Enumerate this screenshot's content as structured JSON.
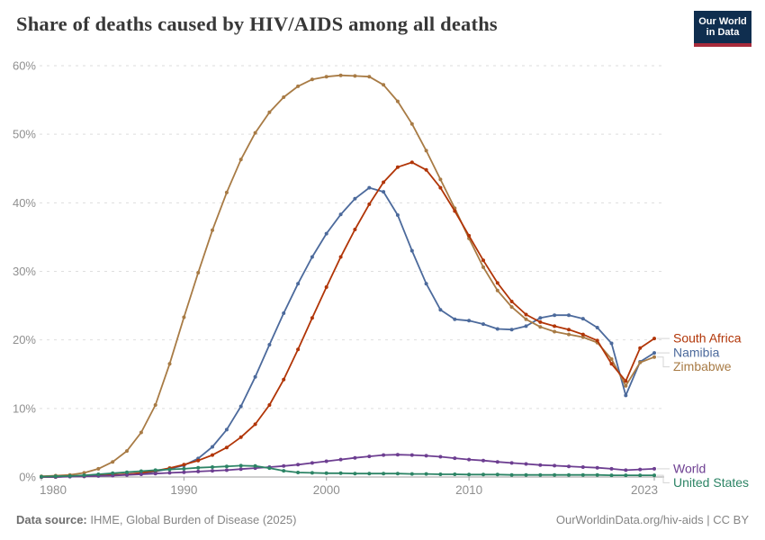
{
  "header": {
    "title": "Share of deaths caused by HIV/AIDS among all deaths",
    "logo_line1": "Our World",
    "logo_line2": "in Data"
  },
  "footer": {
    "source_label": "Data source:",
    "source_text": " IHME, Global Burden of Disease (2025)",
    "link_text": "OurWorldinData.org/hiv-aids | CC BY"
  },
  "colors": {
    "grid": "#dedede",
    "axis": "#9e9e9e",
    "tick_text": "#8f8f8f",
    "connector": "#d4d4d4",
    "logo_navy": "#0f2e4f",
    "logo_red": "#a82b3b"
  },
  "chart_data": {
    "type": "line",
    "title": "Share of deaths caused by HIV/AIDS among all deaths",
    "unit": "%",
    "ylim": [
      0,
      60
    ],
    "yticks": [
      "0%",
      "10%",
      "20%",
      "30%",
      "40%",
      "50%",
      "60%"
    ],
    "xticks": [
      "1980",
      "1990",
      "2000",
      "2010",
      "2023"
    ],
    "grid": "horizontal-dashed",
    "legend_position": "right-line-end-labels",
    "x": [
      1980,
      1981,
      1982,
      1983,
      1984,
      1985,
      1986,
      1987,
      1988,
      1989,
      1990,
      1991,
      1992,
      1993,
      1994,
      1995,
      1996,
      1997,
      1998,
      1999,
      2000,
      2001,
      2002,
      2003,
      2004,
      2005,
      2006,
      2007,
      2008,
      2009,
      2010,
      2011,
      2012,
      2013,
      2014,
      2015,
      2016,
      2017,
      2018,
      2019,
      2020,
      2021,
      2022,
      2023
    ],
    "series": [
      {
        "name": "South Africa",
        "color": "#b13507",
        "values": [
          0.0,
          0.0,
          0.1,
          0.1,
          0.2,
          0.3,
          0.4,
          0.6,
          0.9,
          1.3,
          1.8,
          2.4,
          3.2,
          4.3,
          5.8,
          7.7,
          10.5,
          14.2,
          18.6,
          23.2,
          27.7,
          32.1,
          36.1,
          39.8,
          43.0,
          45.2,
          45.9,
          44.8,
          42.2,
          38.8,
          35.2,
          31.6,
          28.3,
          25.6,
          23.7,
          22.6,
          22.0,
          21.5,
          20.8,
          19.9,
          16.5,
          14.0,
          18.8,
          20.2
        ]
      },
      {
        "name": "Namibia",
        "color": "#4c6a9c",
        "values": [
          0.0,
          0.0,
          0.1,
          0.1,
          0.2,
          0.3,
          0.4,
          0.5,
          0.8,
          1.2,
          1.7,
          2.7,
          4.4,
          6.9,
          10.3,
          14.6,
          19.3,
          23.9,
          28.2,
          32.1,
          35.5,
          38.3,
          40.6,
          42.2,
          41.6,
          38.2,
          33.0,
          28.2,
          24.4,
          23.0,
          22.8,
          22.3,
          21.6,
          21.5,
          22.0,
          23.2,
          23.6,
          23.6,
          23.1,
          21.8,
          19.5,
          11.9,
          16.8,
          18.1
        ]
      },
      {
        "name": "Zimbabwe",
        "color": "#a87b45",
        "values": [
          0.1,
          0.2,
          0.3,
          0.6,
          1.2,
          2.2,
          3.8,
          6.5,
          10.5,
          16.5,
          23.3,
          29.8,
          36.0,
          41.5,
          46.3,
          50.2,
          53.2,
          55.4,
          57.0,
          58.0,
          58.4,
          58.6,
          58.5,
          58.4,
          57.2,
          54.8,
          51.5,
          47.6,
          43.4,
          39.2,
          34.8,
          30.6,
          27.2,
          24.8,
          23.0,
          21.9,
          21.2,
          20.8,
          20.4,
          19.6,
          17.2,
          13.3,
          16.7,
          17.5
        ]
      },
      {
        "name": "World",
        "color": "#6d3e91",
        "values": [
          0.0,
          0.0,
          0.05,
          0.1,
          0.15,
          0.2,
          0.3,
          0.4,
          0.5,
          0.6,
          0.7,
          0.8,
          0.9,
          1.0,
          1.15,
          1.3,
          1.45,
          1.6,
          1.8,
          2.05,
          2.3,
          2.55,
          2.8,
          3.0,
          3.2,
          3.25,
          3.2,
          3.1,
          2.95,
          2.75,
          2.55,
          2.4,
          2.2,
          2.05,
          1.9,
          1.75,
          1.65,
          1.55,
          1.45,
          1.35,
          1.2,
          1.0,
          1.1,
          1.2
        ]
      },
      {
        "name": "United States",
        "color": "#2c8465",
        "values": [
          0.05,
          0.1,
          0.15,
          0.25,
          0.4,
          0.55,
          0.7,
          0.85,
          1.0,
          1.1,
          1.2,
          1.35,
          1.45,
          1.55,
          1.65,
          1.6,
          1.3,
          0.9,
          0.65,
          0.6,
          0.55,
          0.55,
          0.5,
          0.5,
          0.5,
          0.5,
          0.45,
          0.45,
          0.4,
          0.4,
          0.35,
          0.35,
          0.35,
          0.3,
          0.3,
          0.3,
          0.3,
          0.3,
          0.3,
          0.3,
          0.25,
          0.25,
          0.25,
          0.25
        ]
      }
    ]
  }
}
